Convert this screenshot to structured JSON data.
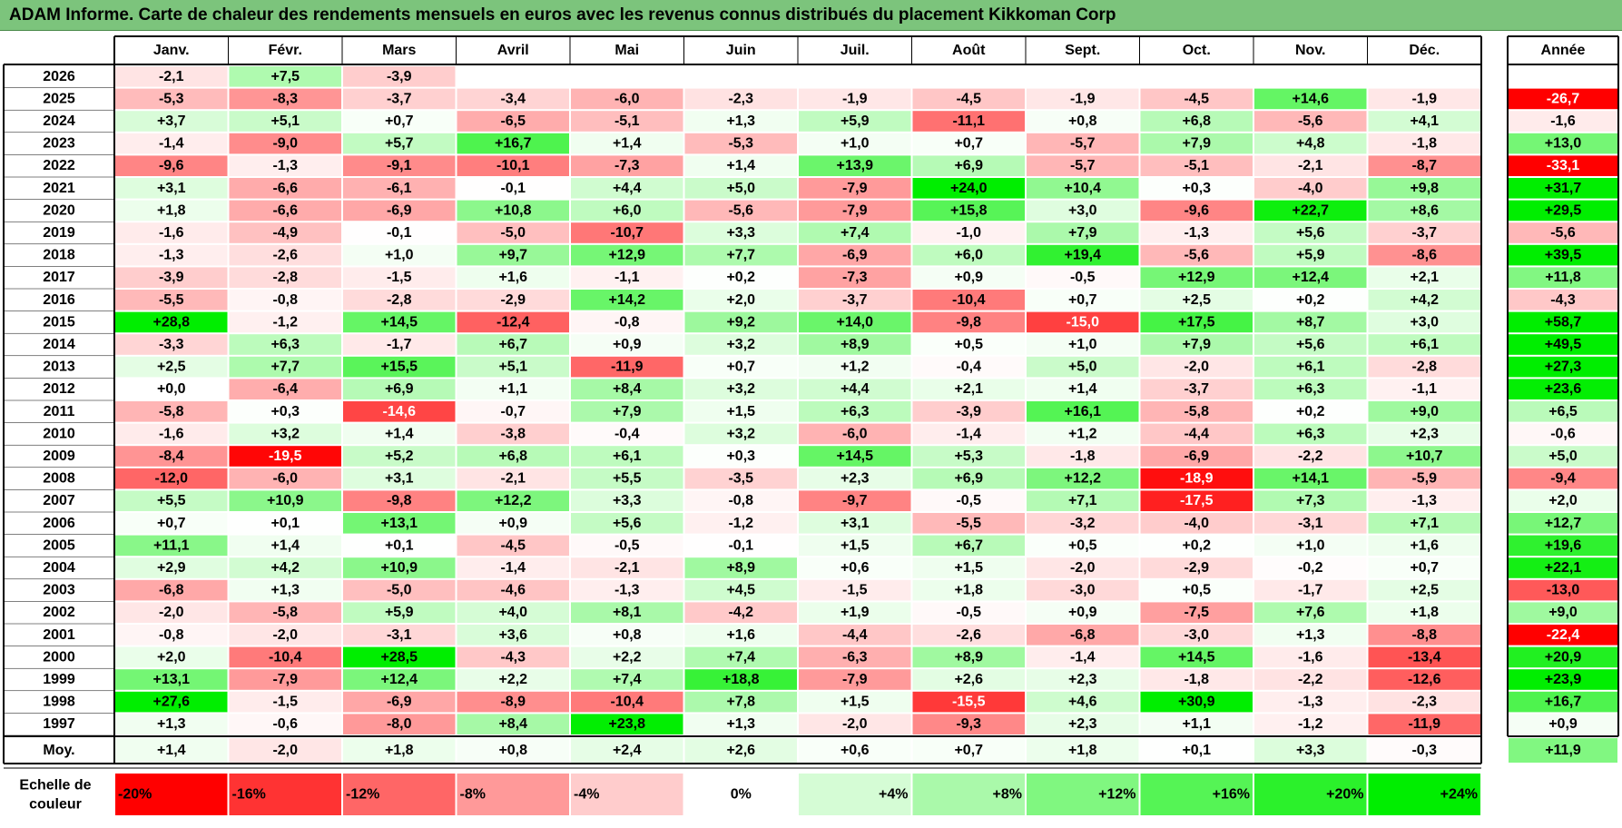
{
  "title": "ADAM Informe. Carte de chaleur des rendements mensuels en euros avec les revenus connus distribués du placement Kikkoman Corp",
  "chart_data": {
    "type": "heatmap",
    "months": [
      "Janv.",
      "Févr.",
      "Mars",
      "Avril",
      "Mai",
      "Juin",
      "Juil.",
      "Août",
      "Sept.",
      "Oct.",
      "Nov.",
      "Déc."
    ],
    "year_header": "Année",
    "rows": [
      {
        "year": "2026",
        "values": [
          "-2,1",
          "+7,5",
          "-3,9",
          "",
          "",
          "",
          "",
          "",
          "",
          "",
          "",
          ""
        ],
        "annual": ""
      },
      {
        "year": "2025",
        "values": [
          "-5,3",
          "-8,3",
          "-3,7",
          "-3,4",
          "-6,0",
          "-2,3",
          "-1,9",
          "-4,5",
          "-1,9",
          "-4,5",
          "+14,6",
          "-1,9"
        ],
        "annual": "-26,7"
      },
      {
        "year": "2024",
        "values": [
          "+3,7",
          "+5,1",
          "+0,7",
          "-6,5",
          "-5,1",
          "+1,3",
          "+5,9",
          "-11,1",
          "+0,8",
          "+6,8",
          "-5,6",
          "+4,1"
        ],
        "annual": "-1,6"
      },
      {
        "year": "2023",
        "values": [
          "-1,4",
          "-9,0",
          "+5,7",
          "+16,7",
          "+1,4",
          "-5,3",
          "+1,0",
          "+0,7",
          "-5,7",
          "+7,9",
          "+4,8",
          "-1,8"
        ],
        "annual": "+13,0"
      },
      {
        "year": "2022",
        "values": [
          "-9,6",
          "-1,3",
          "-9,1",
          "-10,1",
          "-7,3",
          "+1,4",
          "+13,9",
          "+6,9",
          "-5,7",
          "-5,1",
          "-2,1",
          "-8,7"
        ],
        "annual": "-33,1"
      },
      {
        "year": "2021",
        "values": [
          "+3,1",
          "-6,6",
          "-6,1",
          "-0,1",
          "+4,4",
          "+5,0",
          "-7,9",
          "+24,0",
          "+10,4",
          "+0,3",
          "-4,0",
          "+9,8"
        ],
        "annual": "+31,7"
      },
      {
        "year": "2020",
        "values": [
          "+1,8",
          "-6,6",
          "-6,9",
          "+10,8",
          "+6,0",
          "-5,6",
          "-7,9",
          "+15,8",
          "+3,0",
          "-9,6",
          "+22,7",
          "+8,6"
        ],
        "annual": "+29,5"
      },
      {
        "year": "2019",
        "values": [
          "-1,6",
          "-4,9",
          "-0,1",
          "-5,0",
          "-10,7",
          "+3,3",
          "+7,4",
          "-1,0",
          "+7,9",
          "-1,3",
          "+5,6",
          "-3,7"
        ],
        "annual": "-5,6"
      },
      {
        "year": "2018",
        "values": [
          "-1,3",
          "-2,6",
          "+1,0",
          "+9,7",
          "+12,9",
          "+7,7",
          "-6,9",
          "+6,0",
          "+19,4",
          "-5,6",
          "+5,9",
          "-8,6"
        ],
        "annual": "+39,5"
      },
      {
        "year": "2017",
        "values": [
          "-3,9",
          "-2,8",
          "-1,5",
          "+1,6",
          "-1,1",
          "+0,2",
          "-7,3",
          "+0,9",
          "-0,5",
          "+12,9",
          "+12,4",
          "+2,1"
        ],
        "annual": "+11,8"
      },
      {
        "year": "2016",
        "values": [
          "-5,5",
          "-0,8",
          "-2,8",
          "-2,9",
          "+14,2",
          "+2,0",
          "-3,7",
          "-10,4",
          "+0,7",
          "+2,5",
          "+0,2",
          "+4,2"
        ],
        "annual": "-4,3"
      },
      {
        "year": "2015",
        "values": [
          "+28,8",
          "-1,2",
          "+14,5",
          "-12,4",
          "-0,8",
          "+9,2",
          "+14,0",
          "-9,8",
          "-15,0",
          "+17,5",
          "+8,7",
          "+3,0"
        ],
        "annual": "+58,7"
      },
      {
        "year": "2014",
        "values": [
          "-3,3",
          "+6,3",
          "-1,7",
          "+6,7",
          "+0,9",
          "+3,2",
          "+8,9",
          "+0,5",
          "+1,0",
          "+7,9",
          "+5,6",
          "+6,1"
        ],
        "annual": "+49,5"
      },
      {
        "year": "2013",
        "values": [
          "+2,5",
          "+7,7",
          "+15,5",
          "+5,1",
          "-11,9",
          "+0,7",
          "+1,2",
          "-0,4",
          "+5,0",
          "-2,0",
          "+6,1",
          "-2,8"
        ],
        "annual": "+27,3"
      },
      {
        "year": "2012",
        "values": [
          "+0,0",
          "-6,4",
          "+6,9",
          "+1,1",
          "+8,4",
          "+3,2",
          "+4,4",
          "+2,1",
          "+1,4",
          "-3,7",
          "+6,3",
          "-1,1"
        ],
        "annual": "+23,6"
      },
      {
        "year": "2011",
        "values": [
          "-5,8",
          "+0,3",
          "-14,6",
          "-0,7",
          "+7,9",
          "+1,5",
          "+6,3",
          "-3,9",
          "+16,1",
          "-5,8",
          "+0,2",
          "+9,0"
        ],
        "annual": "+6,5"
      },
      {
        "year": "2010",
        "values": [
          "-1,6",
          "+3,2",
          "+1,4",
          "-3,8",
          "-0,4",
          "+3,2",
          "-6,0",
          "-1,4",
          "+1,2",
          "-4,4",
          "+6,3",
          "+2,3"
        ],
        "annual": "-0,6"
      },
      {
        "year": "2009",
        "values": [
          "-8,4",
          "-19,5",
          "+5,2",
          "+6,8",
          "+6,1",
          "+0,3",
          "+14,5",
          "+5,3",
          "-1,8",
          "-6,9",
          "-2,2",
          "+10,7"
        ],
        "annual": "+5,0"
      },
      {
        "year": "2008",
        "values": [
          "-12,0",
          "-6,0",
          "+3,1",
          "-2,1",
          "+5,5",
          "-3,5",
          "+2,3",
          "+6,9",
          "+12,2",
          "-18,9",
          "+14,1",
          "-5,9"
        ],
        "annual": "-9,4"
      },
      {
        "year": "2007",
        "values": [
          "+5,5",
          "+10,9",
          "-9,8",
          "+12,2",
          "+3,3",
          "-0,8",
          "-9,7",
          "-0,5",
          "+7,1",
          "-17,5",
          "+7,3",
          "-1,3"
        ],
        "annual": "+2,0"
      },
      {
        "year": "2006",
        "values": [
          "+0,7",
          "+0,1",
          "+13,1",
          "+0,9",
          "+5,6",
          "-1,2",
          "+3,1",
          "-5,5",
          "-3,2",
          "-4,0",
          "-3,1",
          "+7,1"
        ],
        "annual": "+12,7"
      },
      {
        "year": "2005",
        "values": [
          "+11,1",
          "+1,4",
          "+0,1",
          "-4,5",
          "-0,5",
          "-0,1",
          "+1,5",
          "+6,7",
          "+0,5",
          "+0,2",
          "+1,0",
          "+1,6"
        ],
        "annual": "+19,6"
      },
      {
        "year": "2004",
        "values": [
          "+2,9",
          "+4,2",
          "+10,9",
          "-1,4",
          "-2,1",
          "+8,9",
          "+0,6",
          "+1,5",
          "-2,0",
          "-2,9",
          "-0,2",
          "+0,7"
        ],
        "annual": "+22,1"
      },
      {
        "year": "2003",
        "values": [
          "-6,8",
          "+1,3",
          "-5,0",
          "-4,6",
          "-1,3",
          "+4,5",
          "-1,5",
          "+1,8",
          "-3,0",
          "+0,5",
          "-1,7",
          "+2,5"
        ],
        "annual": "-13,0"
      },
      {
        "year": "2002",
        "values": [
          "-2,0",
          "-5,8",
          "+5,9",
          "+4,0",
          "+8,1",
          "-4,2",
          "+1,9",
          "-0,5",
          "+0,9",
          "-7,5",
          "+7,6",
          "+1,8"
        ],
        "annual": "+9,0"
      },
      {
        "year": "2001",
        "values": [
          "-0,8",
          "-2,0",
          "-3,1",
          "+3,6",
          "+0,8",
          "+1,6",
          "-4,4",
          "-2,6",
          "-6,8",
          "-3,0",
          "+1,3",
          "-8,8"
        ],
        "annual": "-22,4"
      },
      {
        "year": "2000",
        "values": [
          "+2,0",
          "-10,4",
          "+28,5",
          "-4,3",
          "+2,2",
          "+7,4",
          "-6,3",
          "+8,9",
          "-1,4",
          "+14,5",
          "-1,6",
          "-13,4"
        ],
        "annual": "+20,9"
      },
      {
        "year": "1999",
        "values": [
          "+13,1",
          "-7,9",
          "+12,4",
          "+2,2",
          "+7,4",
          "+18,8",
          "-7,9",
          "+2,6",
          "+2,3",
          "-1,8",
          "-2,2",
          "-12,6"
        ],
        "annual": "+23,9"
      },
      {
        "year": "1998",
        "values": [
          "+27,6",
          "-1,5",
          "-6,9",
          "-8,9",
          "-10,4",
          "+7,8",
          "+1,5",
          "-15,5",
          "+4,6",
          "+30,9",
          "-1,3",
          "-2,3"
        ],
        "annual": "+16,7"
      },
      {
        "year": "1997",
        "values": [
          "+1,3",
          "-0,6",
          "-8,0",
          "+8,4",
          "+23,8",
          "+1,3",
          "-2,0",
          "-9,3",
          "+2,3",
          "+1,1",
          "-1,2",
          "-11,9"
        ],
        "annual": "+0,9"
      }
    ],
    "average": {
      "label": "Moy.",
      "values": [
        "+1,4",
        "-2,0",
        "+1,8",
        "+0,8",
        "+2,4",
        "+2,6",
        "+0,6",
        "+0,7",
        "+1,8",
        "+0,1",
        "+3,3",
        "-0,3"
      ],
      "annual": "+11,9"
    },
    "scale": {
      "label_line1": "Echelle de",
      "label_line2": "couleur",
      "steps": [
        "-20%",
        "-16%",
        "-12%",
        "-8%",
        "-4%",
        "0%",
        "+4%",
        "+8%",
        "+12%",
        "+16%",
        "+20%",
        "+24%"
      ],
      "steps_values": [
        -20,
        -16,
        -12,
        -8,
        -4,
        0,
        4,
        8,
        12,
        16,
        20,
        24
      ]
    },
    "colors": {
      "negative_max": "#ff0000",
      "neutral": "#ffffff",
      "positive_max": "#00ee00",
      "title_bar": "#7cc47c"
    }
  }
}
